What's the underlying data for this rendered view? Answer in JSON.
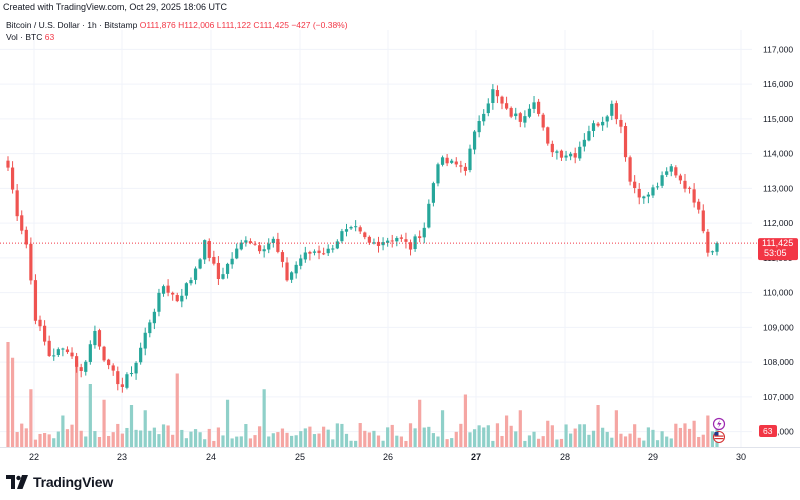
{
  "header": {
    "created_text": "Created with TradingView.com, Oct 29, 2025 18:06 UTC"
  },
  "legend": {
    "symbol": "Bitcoin / U.S. Dollar · 1h · Bitstamp",
    "open": "O111,876",
    "high": "H112,006",
    "low": "L111,122",
    "close": "C111,425",
    "change": "−427 (−0.38%)",
    "vol_label": "Vol · BTC",
    "vol_value": "63"
  },
  "price_tag": {
    "price": "111,425",
    "countdown": "53:05"
  },
  "volume_tag": "63",
  "footer": {
    "logo_text": "TradingView"
  },
  "colors": {
    "up": "#26a69a",
    "down": "#ef5350",
    "vol_up": "#8fd0c9",
    "vol_down": "#f5a6a3",
    "last": "#f23645"
  },
  "chart_data": {
    "type": "candlestick",
    "yaxis_ticks": [
      106000,
      107000,
      108000,
      109000,
      110000,
      111000,
      112000,
      113000,
      114000,
      115000,
      116000,
      117000
    ],
    "yaxis_labels": [
      "106,000",
      "107,000",
      "108,000",
      "109,000",
      "110,000",
      "111,000",
      "112,000",
      "113,000",
      "114,000",
      "115,000",
      "116,000",
      "117,000"
    ],
    "ylim": [
      105500,
      117300
    ],
    "xaxis_labels": [
      "22",
      "23",
      "24",
      "25",
      "26",
      "27",
      "28",
      "29",
      "30"
    ],
    "xaxis_label_bold": "27",
    "last_price": 111425,
    "waypoints": [
      [
        0,
        113600
      ],
      [
        2,
        112300
      ],
      [
        4,
        111400
      ],
      [
        6,
        109300
      ],
      [
        9,
        108200
      ],
      [
        13,
        108400
      ],
      [
        16,
        107700
      ],
      [
        19,
        108900
      ],
      [
        22,
        107800
      ],
      [
        25,
        107300
      ],
      [
        28,
        108000
      ],
      [
        31,
        109200
      ],
      [
        34,
        110200
      ],
      [
        37,
        109800
      ],
      [
        40,
        110400
      ],
      [
        43,
        111400
      ],
      [
        46,
        110400
      ],
      [
        49,
        111000
      ],
      [
        52,
        111600
      ],
      [
        55,
        111300
      ],
      [
        58,
        111500
      ],
      [
        61,
        110400
      ],
      [
        64,
        111000
      ],
      [
        67,
        111200
      ],
      [
        70,
        111200
      ],
      [
        73,
        111700
      ],
      [
        76,
        111800
      ],
      [
        79,
        111400
      ],
      [
        82,
        111500
      ],
      [
        85,
        111600
      ],
      [
        88,
        111300
      ],
      [
        91,
        111900
      ],
      [
        94,
        113800
      ],
      [
        97,
        113700
      ],
      [
        100,
        113600
      ],
      [
        103,
        115000
      ],
      [
        106,
        115800
      ],
      [
        109,
        115200
      ],
      [
        112,
        115000
      ],
      [
        115,
        115600
      ],
      [
        118,
        114200
      ],
      [
        121,
        114000
      ],
      [
        124,
        114000
      ],
      [
        127,
        114700
      ],
      [
        130,
        115000
      ],
      [
        132,
        115400
      ],
      [
        134,
        114800
      ],
      [
        136,
        113200
      ],
      [
        139,
        112700
      ],
      [
        142,
        113100
      ],
      [
        145,
        113600
      ],
      [
        148,
        113100
      ],
      [
        151,
        112500
      ],
      [
        153,
        111200
      ],
      [
        155,
        111425
      ]
    ],
    "volume_baseline": 60,
    "volume_spikes": [
      [
        0,
        1.0
      ],
      [
        1,
        0.85
      ],
      [
        5,
        0.55
      ],
      [
        12,
        0.3
      ],
      [
        15,
        0.8
      ],
      [
        18,
        0.6
      ],
      [
        21,
        0.45
      ],
      [
        27,
        0.4
      ],
      [
        30,
        0.35
      ],
      [
        37,
        0.7
      ],
      [
        48,
        0.45
      ],
      [
        56,
        0.55
      ],
      [
        90,
        0.45
      ],
      [
        95,
        0.35
      ],
      [
        100,
        0.5
      ],
      [
        109,
        0.3
      ],
      [
        112,
        0.35
      ],
      [
        118,
        0.25
      ],
      [
        129,
        0.4
      ],
      [
        133,
        0.35
      ],
      [
        150,
        0.25
      ],
      [
        153,
        0.3
      ]
    ]
  }
}
